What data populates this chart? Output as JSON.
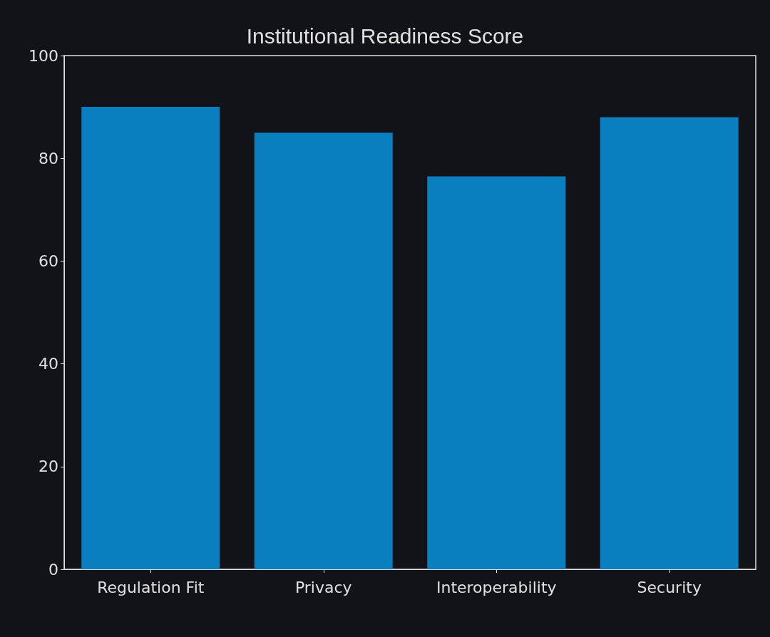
{
  "chart_data": {
    "type": "bar",
    "title": "Institutional Readiness Score",
    "categories": [
      "Regulation Fit",
      "Privacy",
      "Interoperability",
      "Security"
    ],
    "values": [
      90,
      85,
      76.5,
      88
    ],
    "color": "#0a7fbf",
    "ylim": [
      0,
      100
    ],
    "yticks": [
      0,
      20,
      40,
      60,
      80,
      100
    ]
  }
}
